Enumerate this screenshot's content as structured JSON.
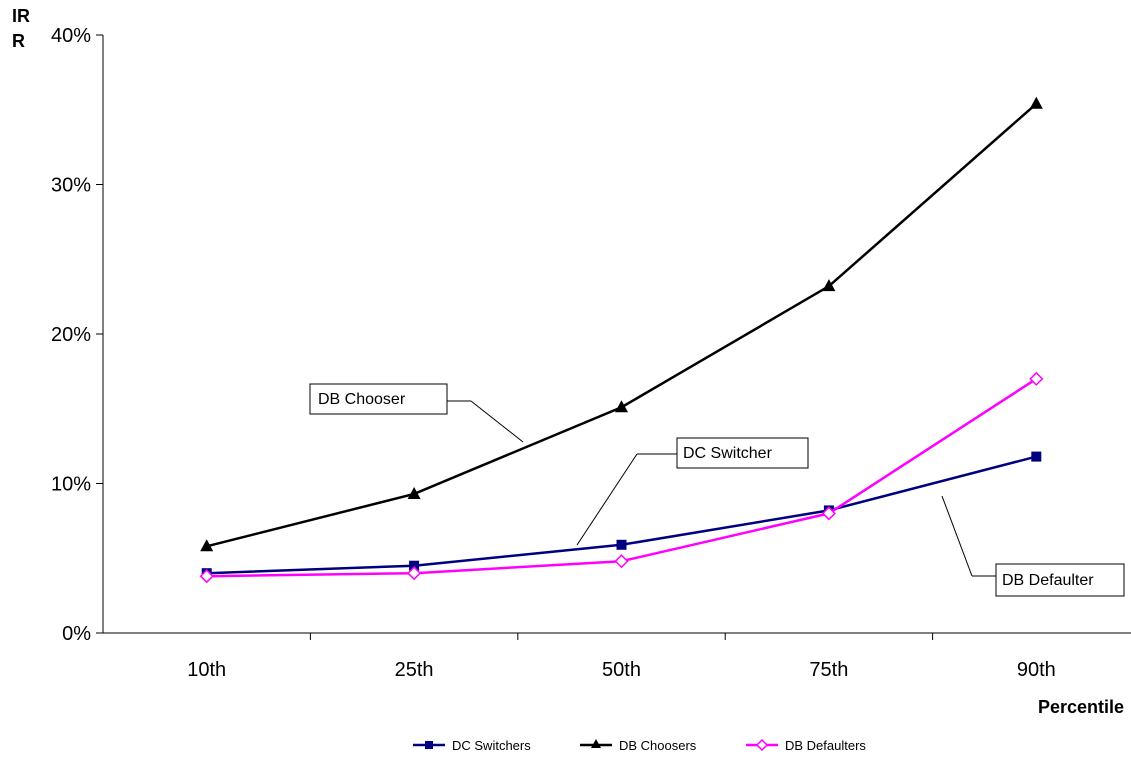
{
  "chart_data": {
    "type": "line",
    "title": "",
    "xlabel": "Percentile",
    "ylabel": "IR R",
    "ylabel_lines": [
      "IR",
      "R"
    ],
    "categories": [
      "10th",
      "25th",
      "50th",
      "75th",
      "90th"
    ],
    "ylim": [
      0,
      0.4
    ],
    "yticks": [
      0,
      0.1,
      0.2,
      0.3,
      0.4
    ],
    "ytick_labels": [
      "0%",
      "10%",
      "20%",
      "30%",
      "40%"
    ],
    "grid": false,
    "legend_position": "bottom",
    "series": [
      {
        "name": "DC Switchers",
        "color": "#000080",
        "marker": "square",
        "values": [
          0.04,
          0.045,
          0.059,
          0.082,
          0.118
        ]
      },
      {
        "name": "DB Choosers",
        "color": "#000000",
        "marker": "triangle",
        "values": [
          0.058,
          0.093,
          0.151,
          0.232,
          0.354
        ]
      },
      {
        "name": "DB Defaulters",
        "color": "#ff00ff",
        "marker": "diamond-open",
        "values": [
          0.038,
          0.04,
          0.048,
          0.08,
          0.17
        ]
      }
    ],
    "annotations": [
      {
        "text": "DB Chooser",
        "series": "DB Choosers"
      },
      {
        "text": "DC Switcher",
        "series": "DC Switchers"
      },
      {
        "text": "DB Defaulter",
        "series": "DB Defaulters"
      }
    ]
  }
}
